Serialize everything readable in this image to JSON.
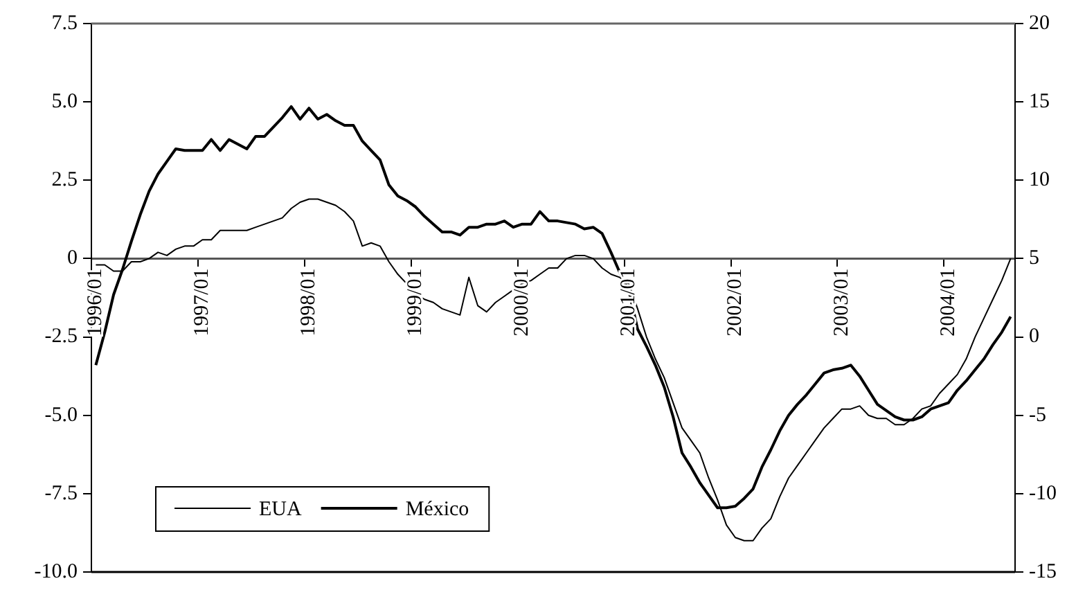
{
  "chart_data": {
    "type": "line",
    "categories": [
      "1996/01",
      null,
      null,
      null,
      null,
      null,
      null,
      null,
      null,
      null,
      null,
      null,
      "1997/01",
      null,
      null,
      null,
      null,
      null,
      null,
      null,
      null,
      null,
      null,
      null,
      "1998/01",
      null,
      null,
      null,
      null,
      null,
      null,
      null,
      null,
      null,
      null,
      null,
      "1999/01",
      null,
      null,
      null,
      null,
      null,
      null,
      null,
      null,
      null,
      null,
      null,
      "2000/01",
      null,
      null,
      null,
      null,
      null,
      null,
      null,
      null,
      null,
      null,
      null,
      "2001/01",
      null,
      null,
      null,
      null,
      null,
      null,
      null,
      null,
      null,
      null,
      null,
      "2002/01",
      null,
      null,
      null,
      null,
      null,
      null,
      null,
      null,
      null,
      null,
      null,
      "2003/01",
      null,
      null,
      null,
      null,
      null,
      null,
      null,
      null,
      null,
      null,
      null,
      "2004/01",
      null,
      null,
      null,
      null,
      null,
      null,
      null
    ],
    "series": [
      {
        "name": "EUA",
        "color": "#000000",
        "values": [
          -0.2,
          -0.2,
          -0.4,
          -0.4,
          -0.1,
          -0.1,
          0.0,
          0.2,
          0.1,
          0.3,
          0.4,
          0.4,
          0.6,
          0.6,
          0.9,
          0.9,
          0.9,
          0.9,
          1.0,
          1.1,
          1.2,
          1.3,
          1.6,
          1.8,
          1.9,
          1.9,
          1.8,
          1.7,
          1.5,
          1.2,
          0.4,
          0.5,
          0.4,
          -0.1,
          -0.5,
          -0.8,
          -1.1,
          -1.3,
          -1.4,
          -1.6,
          -1.7,
          -1.8,
          -0.6,
          -1.5,
          -1.7,
          -1.4,
          -1.2,
          -1.0,
          -0.8,
          -0.7,
          -0.5,
          -0.3,
          -0.3,
          0.0,
          0.1,
          0.1,
          0.0,
          -0.3,
          -0.5,
          -0.6,
          -0.8,
          -1.6,
          -2.5,
          -3.2,
          -3.8,
          -4.6,
          -5.4,
          -5.8,
          -6.2,
          -7.0,
          -7.7,
          -8.5,
          -8.9,
          -9.0,
          -9.0,
          -8.6,
          -8.3,
          -7.6,
          -7.0,
          -6.6,
          -6.2,
          -5.8,
          -5.4,
          -5.1,
          -4.8,
          -4.8,
          -4.7,
          -5.0,
          -5.1,
          -5.1,
          -5.3,
          -5.3,
          -5.1,
          -4.8,
          -4.7,
          -4.3,
          -4.0,
          -3.7,
          -3.2,
          -2.5,
          -1.9,
          -1.3,
          -0.7,
          0.0
        ]
      },
      {
        "name": "México",
        "color": "#000000",
        "axis": "y2",
        "values": [
          -1.8,
          0.3,
          2.7,
          4.3,
          6.1,
          7.8,
          9.3,
          10.4,
          11.2,
          12.0,
          11.9,
          11.9,
          11.9,
          12.6,
          11.9,
          12.6,
          12.3,
          12.0,
          12.8,
          12.8,
          13.4,
          14.0,
          14.7,
          13.9,
          14.6,
          13.9,
          14.2,
          13.8,
          13.5,
          13.5,
          12.5,
          11.9,
          11.3,
          9.7,
          9.0,
          8.7,
          8.3,
          7.7,
          7.2,
          6.7,
          6.7,
          6.5,
          7.0,
          7.0,
          7.2,
          7.2,
          7.4,
          7.0,
          7.2,
          7.2,
          8.0,
          7.4,
          7.4,
          7.3,
          7.2,
          6.9,
          7.0,
          6.6,
          5.4,
          4.1,
          3.0,
          0.5,
          -0.6,
          -1.8,
          -3.2,
          -5.1,
          -7.4,
          -8.3,
          -9.3,
          -10.1,
          -10.9,
          -10.9,
          -10.8,
          -10.3,
          -9.7,
          -8.3,
          -7.2,
          -6.0,
          -5.0,
          -4.3,
          -3.7,
          -3.0,
          -2.3,
          -2.1,
          -2.0,
          -1.8,
          -2.5,
          -3.4,
          -4.3,
          -4.7,
          -5.1,
          -5.3,
          -5.3,
          -5.1,
          -4.6,
          -4.4,
          -4.2,
          -3.4,
          -2.8,
          -2.1,
          -1.4,
          -0.5,
          0.3,
          1.3
        ]
      }
    ],
    "ylim": [
      -10,
      7.5
    ],
    "yticks": [
      {
        "value": -10,
        "label": "-10.0"
      },
      {
        "value": -7.5,
        "label": "-7.5"
      },
      {
        "value": -5,
        "label": "-5.0"
      },
      {
        "value": -2.5,
        "label": "-2.5"
      },
      0,
      {
        "value": 2.5,
        "label": "2.5"
      },
      {
        "value": 5,
        "label": "5.0"
      },
      {
        "value": 7.5,
        "label": "7.5"
      }
    ],
    "y2lim": [
      -15,
      20
    ],
    "y2ticks": [
      -15,
      -10,
      -5,
      0,
      5,
      10,
      15,
      20
    ],
    "legend": "bottom left",
    "line_style": "solid"
  }
}
